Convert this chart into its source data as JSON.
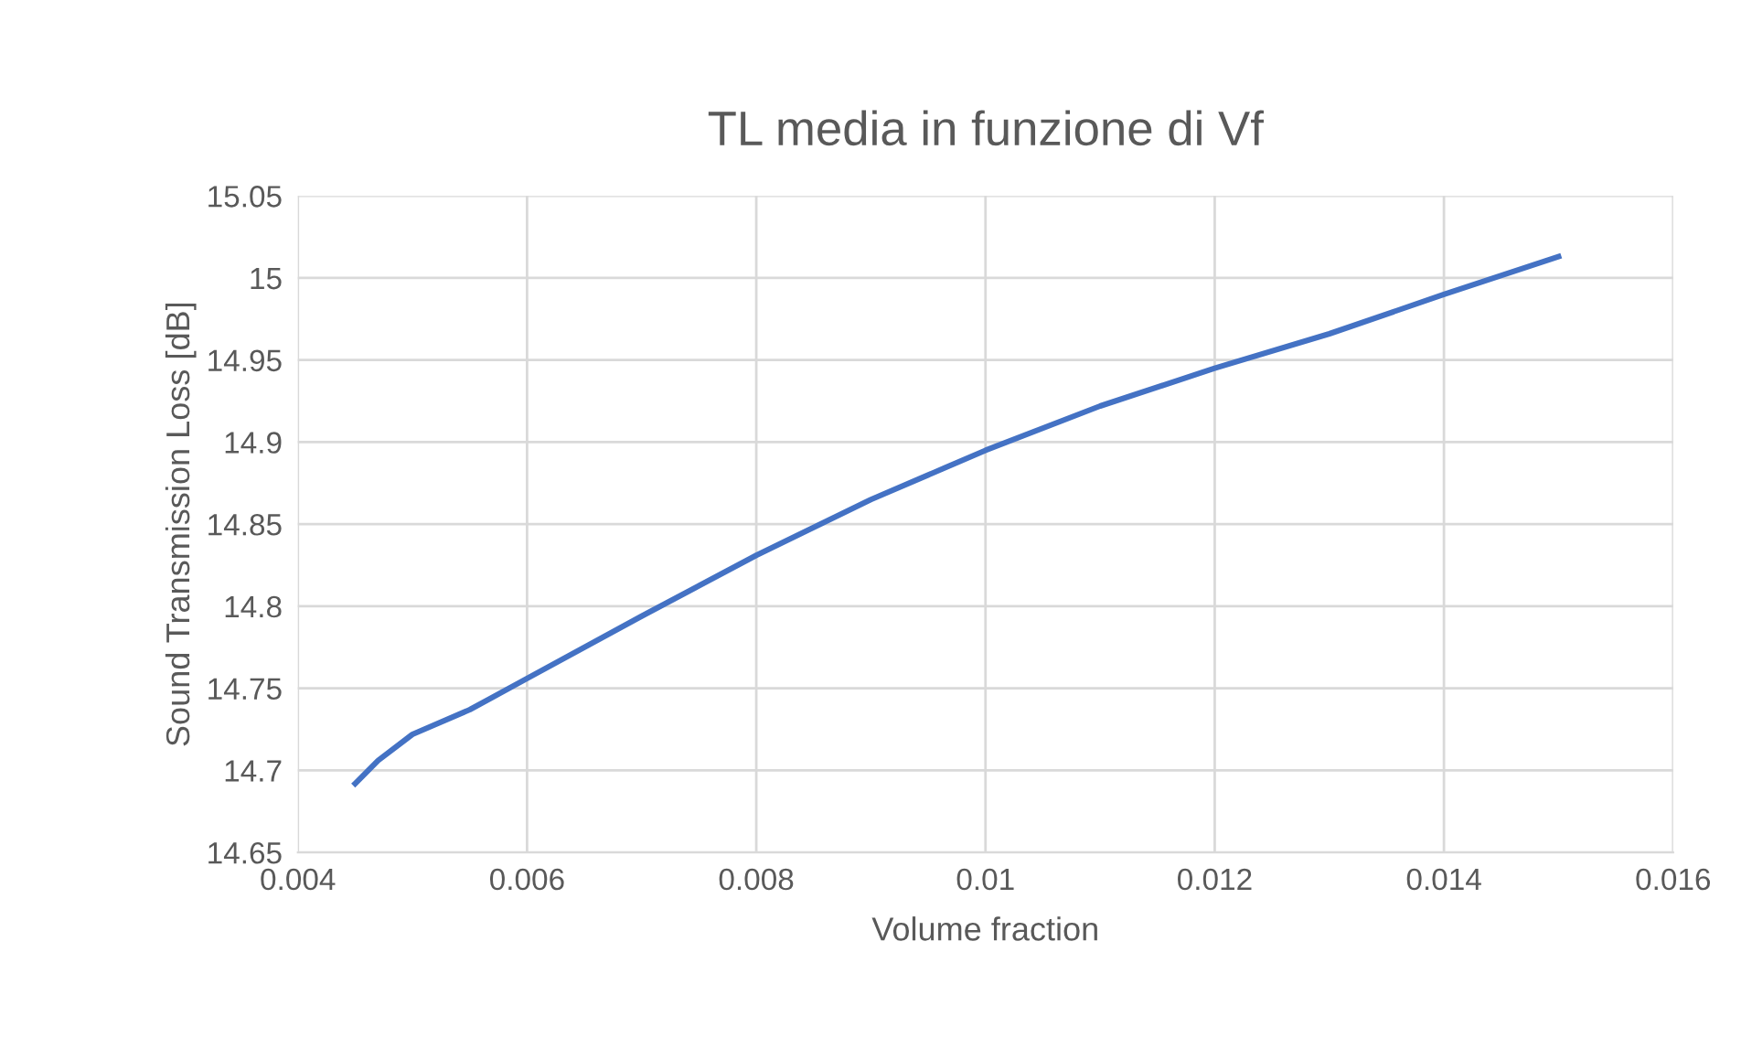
{
  "chart_data": {
    "type": "line",
    "title": "TL media in funzione di Vf",
    "xlabel": "Volume fraction",
    "ylabel": "Sound Transmission Loss [dB]",
    "x": [
      0.0045,
      0.0047,
      0.005,
      0.0055,
      0.006,
      0.007,
      0.008,
      0.009,
      0.01,
      0.011,
      0.012,
      0.013,
      0.014,
      0.015
    ],
    "series": [
      {
        "color": "#4472c4",
        "values": [
          14.692,
          14.706,
          14.722,
          14.737,
          14.756,
          14.794,
          14.831,
          14.865,
          14.895,
          14.922,
          14.945,
          14.966,
          14.99,
          15.013
        ]
      }
    ],
    "xlim": [
      0.004,
      0.016
    ],
    "xticks": [
      0.004,
      0.006,
      0.008,
      0.01,
      0.012,
      0.014,
      0.016
    ],
    "ylim": [
      14.65,
      15.05
    ],
    "yticks": [
      14.65,
      14.7,
      14.75,
      14.8,
      14.85,
      14.9,
      14.95,
      15,
      15.05
    ],
    "grid": true,
    "marker": "none",
    "line_style": "solid",
    "legend": false
  }
}
